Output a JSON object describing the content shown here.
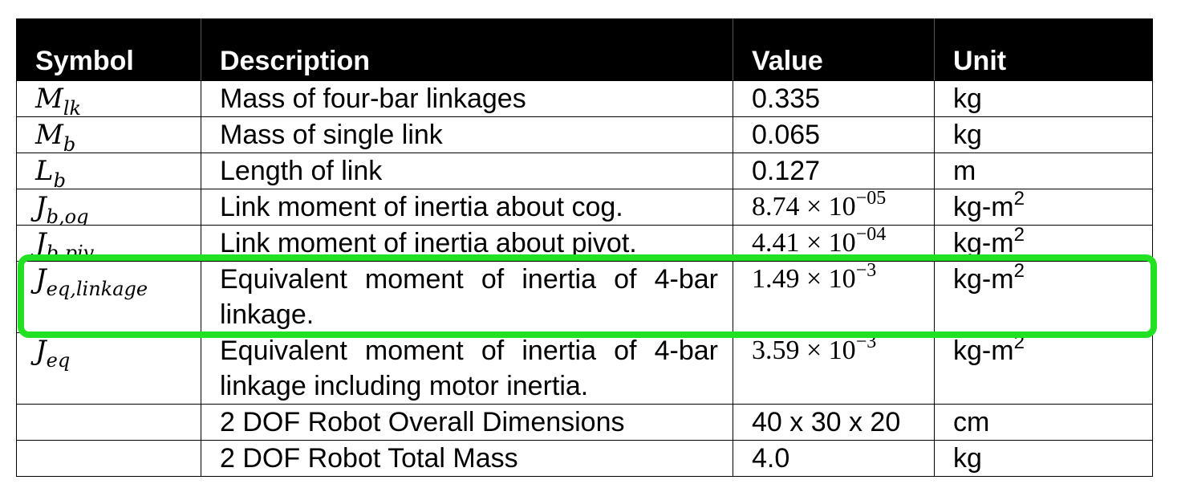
{
  "header": {
    "symbol": "Symbol",
    "description": "Description",
    "value": "Value",
    "unit": "Unit"
  },
  "rows": [
    {
      "sym_base": "M",
      "sym_sub": "lk",
      "description": "Mass of four-bar linkages",
      "value": "0.335",
      "unit": "kg"
    },
    {
      "sym_base": "M",
      "sym_sub": "b",
      "description": "Mass of single link",
      "value": "0.065",
      "unit": "kg"
    },
    {
      "sym_base": "L",
      "sym_sub": "b",
      "description": "Length of link",
      "value": "0.127",
      "unit": "m"
    },
    {
      "sym_base": "J",
      "sym_sub": "b,og",
      "description": "Link moment of inertia about cog.",
      "value_mant": "8.74 × 10",
      "value_exp": "−05",
      "unit_base": "kg-m",
      "unit_exp": "2"
    },
    {
      "sym_base": "J",
      "sym_sub": "b,piv",
      "description": "Link moment of inertia about pivot.",
      "value_mant": "4.41 × 10",
      "value_exp": "−04",
      "unit_base": "kg-m",
      "unit_exp": "2"
    },
    {
      "sym_base": "J",
      "sym_sub": "eq,linkage",
      "description": "Equivalent moment of inertia of 4-bar linkage.",
      "value_mant": "1.49 × 10",
      "value_exp": "−3",
      "unit_base": "kg-m",
      "unit_exp": "2"
    },
    {
      "sym_base": "J",
      "sym_sub": "eq",
      "description": "Equivalent moment of inertia of 4-bar linkage including motor inertia.",
      "value_mant": "3.59 × 10",
      "value_exp": "−3",
      "unit_base": "kg-m",
      "unit_exp": "2"
    },
    {
      "sym_base": "",
      "sym_sub": "",
      "description": "2 DOF Robot Overall Dimensions",
      "value": "40 x 30 x 20",
      "unit": "cm"
    },
    {
      "sym_base": "",
      "sym_sub": "",
      "description": "2 DOF Robot Total Mass",
      "value": "4.0",
      "unit": "kg"
    }
  ],
  "highlight_color": "#22e022"
}
